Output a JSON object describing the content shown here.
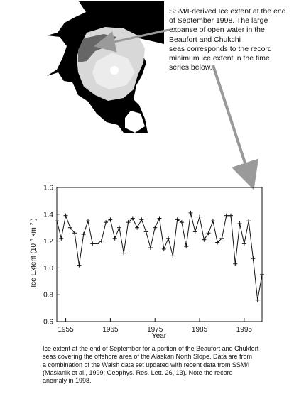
{
  "annotation": {
    "text": "SSM/I-derived Ice extent at the end\nof September 1998.  The large\nexpanse of open water in the\nBeaufort and Chukchi\nseas corresponds to the record\nminimum ice extent in the time\nseries below."
  },
  "caption": {
    "text": "Ice extent at the end of September for a portion of the Beaufort and Chukfort\nseas  covering the offshore area of the Alaskan North Slope.  Data are from\na combination of the Walsh data set updated with recent data from SSM/I\n(Maslanik et al., 1999; Geophys. Res. Lett. 26, 13).  Note the record\nanomaly in 1998."
  },
  "colors": {
    "map_background": "#000000",
    "land": "#ffffff",
    "ice": "#d8d8d8",
    "open_water": "#666666",
    "arrow": "#9a9a9a",
    "line": "#111111"
  },
  "chart_data": {
    "type": "line",
    "title": "",
    "xlabel": "Year",
    "ylabel_main": "Ice Extent (10",
    "ylabel_exp1": "6",
    "ylabel_mid": " km",
    "ylabel_exp2": "2",
    "ylabel_end": ")",
    "xlim": [
      1953,
      1999
    ],
    "ylim": [
      0.6,
      1.6
    ],
    "x_ticks": [
      1955,
      1965,
      1975,
      1985,
      1995
    ],
    "y_ticks": [
      0.6,
      0.8,
      1.0,
      1.2,
      1.4,
      1.6
    ],
    "y_tick_labels": [
      "0.6",
      "0.8",
      "1.0",
      "1.2",
      "1.4",
      "1.6"
    ],
    "grid": false,
    "series": [
      {
        "x": [
          1953,
          1954,
          1955,
          1956,
          1957,
          1958,
          1959,
          1960,
          1961,
          1962,
          1963,
          1964,
          1965,
          1966,
          1967,
          1968,
          1969,
          1970,
          1971,
          1972,
          1973,
          1974,
          1975,
          1976,
          1977,
          1978,
          1979,
          1980,
          1981,
          1982,
          1983,
          1984,
          1985,
          1986,
          1987,
          1988,
          1989,
          1990,
          1991,
          1992,
          1993,
          1994,
          1995,
          1996,
          1997,
          1998,
          1999
        ],
        "values": [
          1.35,
          1.22,
          1.39,
          1.3,
          1.26,
          1.02,
          1.25,
          1.35,
          1.18,
          1.18,
          1.2,
          1.34,
          1.36,
          1.22,
          1.3,
          1.11,
          1.34,
          1.37,
          1.3,
          1.36,
          1.27,
          1.15,
          1.3,
          1.37,
          1.14,
          1.22,
          1.09,
          1.36,
          1.34,
          1.16,
          1.41,
          1.27,
          1.38,
          1.21,
          1.26,
          1.35,
          1.19,
          1.22,
          1.39,
          1.39,
          1.03,
          1.33,
          1.18,
          1.35,
          1.07,
          0.76,
          0.95
        ]
      }
    ]
  }
}
